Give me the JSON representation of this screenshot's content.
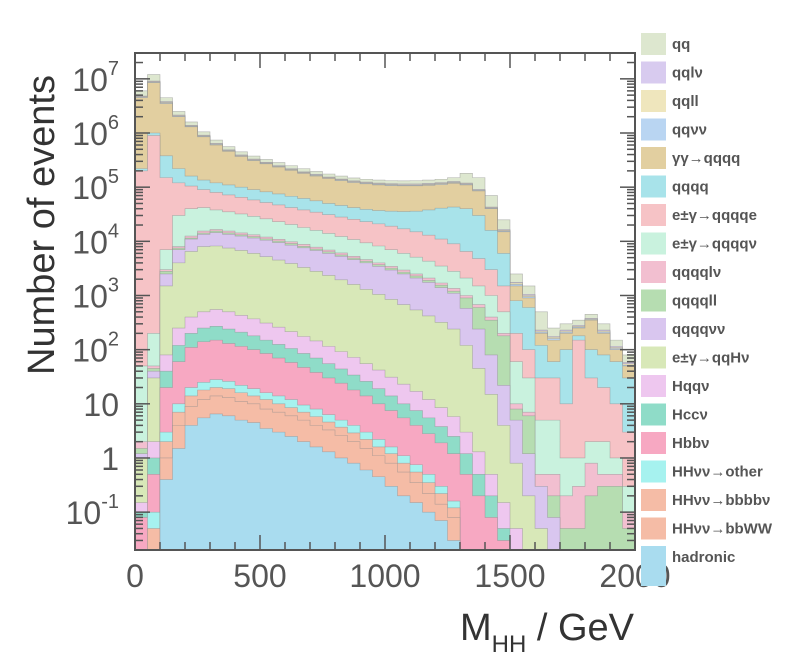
{
  "chart_data": {
    "type": "area",
    "stacked": true,
    "y_scale": "log",
    "xlabel_main": "M",
    "xlabel_sub": "HH",
    "xlabel_unit": " / GeV",
    "ylabel": "Number of events",
    "xlim": [
      0,
      2000
    ],
    "ylim": [
      0.02,
      30000000
    ],
    "x_ticks": [
      "0",
      "500",
      "1000",
      "1500",
      "2000"
    ],
    "y_ticks": [
      {
        "value": 0.1,
        "base": "10",
        "exp": "-1"
      },
      {
        "value": 1,
        "base": "1",
        "exp": ""
      },
      {
        "value": 10,
        "base": "10",
        "exp": ""
      },
      {
        "value": 100,
        "base": "10",
        "exp": "2"
      },
      {
        "value": 1000,
        "base": "10",
        "exp": "3"
      },
      {
        "value": 10000,
        "base": "10",
        "exp": "4"
      },
      {
        "value": 100000,
        "base": "10",
        "exp": "5"
      },
      {
        "value": 1000000,
        "base": "10",
        "exp": "6"
      },
      {
        "value": 10000000,
        "base": "10",
        "exp": "7"
      }
    ],
    "legend_position": "right",
    "bin_width": 50,
    "bin_centers": [
      25,
      75,
      125,
      175,
      225,
      275,
      325,
      375,
      425,
      475,
      525,
      575,
      625,
      675,
      725,
      775,
      825,
      875,
      925,
      975,
      1025,
      1075,
      1125,
      1175,
      1225,
      1275,
      1325,
      1375,
      1425,
      1475,
      1525,
      1575,
      1625,
      1675,
      1725,
      1775,
      1825,
      1875,
      1925,
      1975
    ],
    "series": [
      {
        "name": "hadronic",
        "color": "#a9dcef",
        "cumulative": [
          0.02,
          0.02,
          0.4,
          1.5,
          4,
          5.5,
          6.5,
          6,
          5,
          4.5,
          3.5,
          3,
          2.5,
          2,
          1.6,
          1.3,
          1,
          0.8,
          0.6,
          0.45,
          0.3,
          0.2,
          0.15,
          0.1,
          0.07,
          0.03,
          0.02,
          0.02,
          0.02,
          0.02,
          0.02,
          0.02,
          0.02,
          0.02,
          0.02,
          0.02,
          0.02,
          0.02,
          0.02,
          0.02
        ]
      },
      {
        "name": "HHνν→bbWW",
        "color": "#f5bca6",
        "cumulative": [
          0.02,
          0.02,
          1,
          4,
          9,
          12,
          14,
          13,
          11,
          10,
          8,
          7,
          6,
          5,
          4,
          3.3,
          2.6,
          2,
          1.5,
          1.1,
          0.8,
          0.55,
          0.35,
          0.22,
          0.14,
          0.08,
          0.02,
          0.02,
          0.02,
          0.02,
          0.02,
          0.02,
          0.02,
          0.02,
          0.02,
          0.02,
          0.02,
          0.02,
          0.02,
          0.02
        ]
      },
      {
        "name": "HHνν→bbbbν",
        "color": "#f5bca6",
        "cumulative": [
          0.02,
          0.05,
          2,
          7,
          14,
          18,
          20,
          19,
          16,
          14,
          12,
          10,
          8.5,
          7,
          5.8,
          4.6,
          3.7,
          2.9,
          2.2,
          1.6,
          1.2,
          0.8,
          0.55,
          0.35,
          0.22,
          0.12,
          0.02,
          0.02,
          0.02,
          0.02,
          0.02,
          0.02,
          0.02,
          0.02,
          0.02,
          0.02,
          0.02,
          0.02,
          0.02,
          0.02
        ]
      },
      {
        "name": "HHνν→other",
        "color": "#a6f2ef",
        "cumulative": [
          0.02,
          0.1,
          3,
          10,
          20,
          25,
          28,
          26,
          22,
          19,
          16,
          14,
          12,
          9.5,
          8,
          6.3,
          5,
          4,
          3,
          2.2,
          1.6,
          1.1,
          0.75,
          0.5,
          0.3,
          0.16,
          0.02,
          0.02,
          0.02,
          0.02,
          0.02,
          0.02,
          0.02,
          0.02,
          0.02,
          0.02,
          0.02,
          0.02,
          0.02,
          0.02
        ]
      },
      {
        "name": "Hbbν",
        "color": "#f7a8c2",
        "cumulative": [
          0.08,
          0.5,
          20,
          60,
          110,
          140,
          150,
          130,
          115,
          100,
          85,
          70,
          58,
          47,
          38,
          30,
          24,
          18,
          14,
          10,
          7.5,
          5.5,
          4,
          2.8,
          1.9,
          1.2,
          0.5,
          0.2,
          0.08,
          0.03,
          0.02,
          0.02,
          0.02,
          0.02,
          0.02,
          0.02,
          0.02,
          0.02,
          0.02,
          0.02
        ]
      },
      {
        "name": "Hccν",
        "color": "#8fdcc8",
        "cumulative": [
          0.1,
          1,
          40,
          120,
          200,
          250,
          270,
          240,
          210,
          180,
          150,
          125,
          105,
          85,
          70,
          55,
          44,
          34,
          26,
          19,
          14,
          10,
          7.5,
          5.5,
          3.8,
          2.5,
          1.2,
          0.5,
          0.2,
          0.05,
          0.02,
          0.02,
          0.02,
          0.02,
          0.02,
          0.02,
          0.02,
          0.02,
          0.02,
          0.02
        ]
      },
      {
        "name": "Hqqν",
        "color": "#eec7ef",
        "cumulative": [
          0.15,
          2,
          80,
          250,
          400,
          500,
          550,
          500,
          430,
          370,
          310,
          260,
          215,
          175,
          145,
          115,
          92,
          72,
          55,
          42,
          31,
          23,
          17,
          12,
          8.5,
          5.8,
          3,
          1.3,
          0.5,
          0.15,
          0.05,
          0.02,
          0.02,
          0.02,
          0.02,
          0.02,
          0.02,
          0.02,
          0.02,
          0.02
        ]
      },
      {
        "name": "e±γ→qqHν",
        "color": "#d8e8b8",
        "cumulative": [
          1,
          30,
          1500,
          4000,
          6500,
          8000,
          8200,
          7500,
          6800,
          6000,
          5200,
          4500,
          3900,
          3300,
          2800,
          2350,
          1950,
          1600,
          1300,
          1050,
          850,
          680,
          540,
          420,
          320,
          240,
          120,
          45,
          15,
          4,
          0.8,
          0.2,
          0.05,
          0.02,
          0.02,
          0.02,
          0.02,
          0.02,
          0.02,
          0.02
        ]
      },
      {
        "name": "qqqqνν",
        "color": "#d9c6ef",
        "cumulative": [
          1.2,
          40,
          2500,
          7000,
          11000,
          13500,
          14500,
          13500,
          12500,
          11500,
          10500,
          9500,
          8500,
          7600,
          6800,
          6000,
          5300,
          4600,
          4000,
          3450,
          2950,
          2500,
          2100,
          1750,
          1400,
          1100,
          580,
          240,
          80,
          22,
          5,
          1.2,
          0.3,
          0.08,
          0.02,
          0.02,
          0.02,
          0.02,
          0.02,
          0.02
        ]
      },
      {
        "name": "qqqqll",
        "color": "#b6ddb1",
        "cumulative": [
          1.5,
          45,
          2800,
          7500,
          11500,
          14200,
          15500,
          14300,
          13200,
          12200,
          11100,
          10100,
          9100,
          8100,
          7200,
          6400,
          5600,
          4900,
          4300,
          3700,
          3200,
          2700,
          2300,
          1900,
          1550,
          1200,
          900,
          600,
          350,
          180,
          8,
          6,
          0.2,
          0.2,
          0.05,
          0.05,
          0.2,
          0.3,
          0.3,
          0.05
        ]
      },
      {
        "name": "qqqqlν",
        "color": "#f2bfd0",
        "cumulative": [
          2,
          50,
          3000,
          8000,
          12500,
          15500,
          16500,
          15500,
          14300,
          13200,
          12000,
          10900,
          9800,
          8800,
          7800,
          6900,
          6100,
          5300,
          4600,
          4000,
          3450,
          2950,
          2500,
          2100,
          1700,
          1350,
          1000,
          680,
          400,
          200,
          10,
          7,
          0.5,
          0.5,
          0.2,
          0.3,
          0.8,
          0.5,
          0.5,
          0.1
        ]
      },
      {
        "name": "e±γ→qqqqν",
        "color": "#c9f2de",
        "cumulative": [
          50,
          200,
          7000,
          30000,
          40000,
          42000,
          38000,
          35000,
          32000,
          29000,
          26000,
          23000,
          20500,
          18000,
          16000,
          14000,
          12300,
          10800,
          9400,
          8200,
          7000,
          6000,
          5100,
          4300,
          3500,
          2800,
          2100,
          1500,
          1000,
          500,
          60,
          30,
          5,
          5,
          1,
          1,
          2,
          2,
          1,
          0.3
        ]
      },
      {
        "name": "e±γ→qqqqe",
        "color": "#f6c3c6",
        "cumulative": [
          200000,
          900000,
          150000,
          120000,
          105000,
          90000,
          80000,
          72000,
          65000,
          58000,
          52000,
          47000,
          42000,
          38000,
          34500,
          31000,
          28000,
          25500,
          23000,
          21000,
          19000,
          17000,
          15000,
          13000,
          11000,
          9000,
          6500,
          4800,
          3000,
          1500,
          200,
          100,
          30,
          30,
          10,
          150,
          30,
          20,
          10,
          3
        ]
      },
      {
        "name": "qqqq",
        "color": "#a8e3ea",
        "cumulative": [
          220000,
          1000000,
          380000,
          220000,
          160000,
          135000,
          120000,
          110000,
          100000,
          90000,
          82000,
          75000,
          68000,
          62000,
          56000,
          50000,
          46000,
          42000,
          39000,
          37000,
          36000,
          35500,
          36000,
          38000,
          41000,
          43000,
          40000,
          30000,
          16000,
          6000,
          800,
          600,
          120,
          60,
          100,
          180,
          100,
          80,
          60,
          30
        ]
      },
      {
        "name": "γγ→qqqq",
        "color": "#e2cfa0",
        "cumulative": [
          4500000,
          8500000,
          3500000,
          2000000,
          1300000,
          850000,
          600000,
          460000,
          370000,
          310000,
          270000,
          235000,
          205000,
          180000,
          160000,
          145000,
          132000,
          122000,
          115000,
          110000,
          107000,
          106000,
          106000,
          108000,
          112000,
          118000,
          110000,
          85000,
          40000,
          15000,
          1500,
          900,
          200,
          150,
          200,
          250,
          350,
          200,
          100,
          50
        ]
      },
      {
        "name": "qqνν",
        "color": "#b9d5f2",
        "cumulative": [
          4600000,
          8700000,
          3600000,
          2050000,
          1330000,
          870000,
          615000,
          470000,
          378000,
          317000,
          276000,
          240000,
          210000,
          184000,
          164000,
          148000,
          135000,
          125000,
          118000,
          113000,
          110000,
          109000,
          109000,
          111000,
          115000,
          121000,
          113000,
          87000,
          41000,
          15500,
          1600,
          950,
          210,
          160,
          210,
          260,
          360,
          210,
          105,
          52
        ]
      },
      {
        "name": "qqll",
        "color": "#efe6bd",
        "cumulative": [
          4700000,
          8900000,
          3700000,
          2100000,
          1360000,
          890000,
          630000,
          480000,
          386000,
          324000,
          282000,
          245000,
          215000,
          188000,
          168000,
          151000,
          138000,
          128000,
          121000,
          116000,
          113000,
          112000,
          112000,
          114000,
          118000,
          124000,
          116000,
          89000,
          42000,
          16000,
          1700,
          1000,
          220,
          170,
          220,
          270,
          370,
          220,
          110,
          55
        ]
      },
      {
        "name": "qqlν",
        "color": "#d8cbef",
        "cumulative": [
          4800000,
          9100000,
          3800000,
          2150000,
          1390000,
          910000,
          645000,
          490000,
          394000,
          331000,
          288000,
          250000,
          220000,
          192000,
          172000,
          154000,
          141000,
          131000,
          124000,
          119000,
          116000,
          115000,
          115000,
          117000,
          121000,
          127000,
          119000,
          91000,
          43000,
          16500,
          1750,
          1050,
          230,
          175,
          230,
          280,
          380,
          230,
          115,
          58
        ]
      },
      {
        "name": "qq",
        "color": "#dde7cf",
        "cumulative": [
          6000000,
          12000000,
          4500000,
          2500000,
          1600000,
          1050000,
          740000,
          560000,
          450000,
          375000,
          325000,
          285000,
          250000,
          220000,
          195000,
          175000,
          160000,
          148000,
          140000,
          135000,
          132000,
          131000,
          132000,
          135000,
          140000,
          150000,
          180000,
          150000,
          70000,
          25000,
          2500,
          1500,
          500,
          250,
          300,
          350,
          450,
          300,
          150,
          80
        ]
      }
    ]
  }
}
